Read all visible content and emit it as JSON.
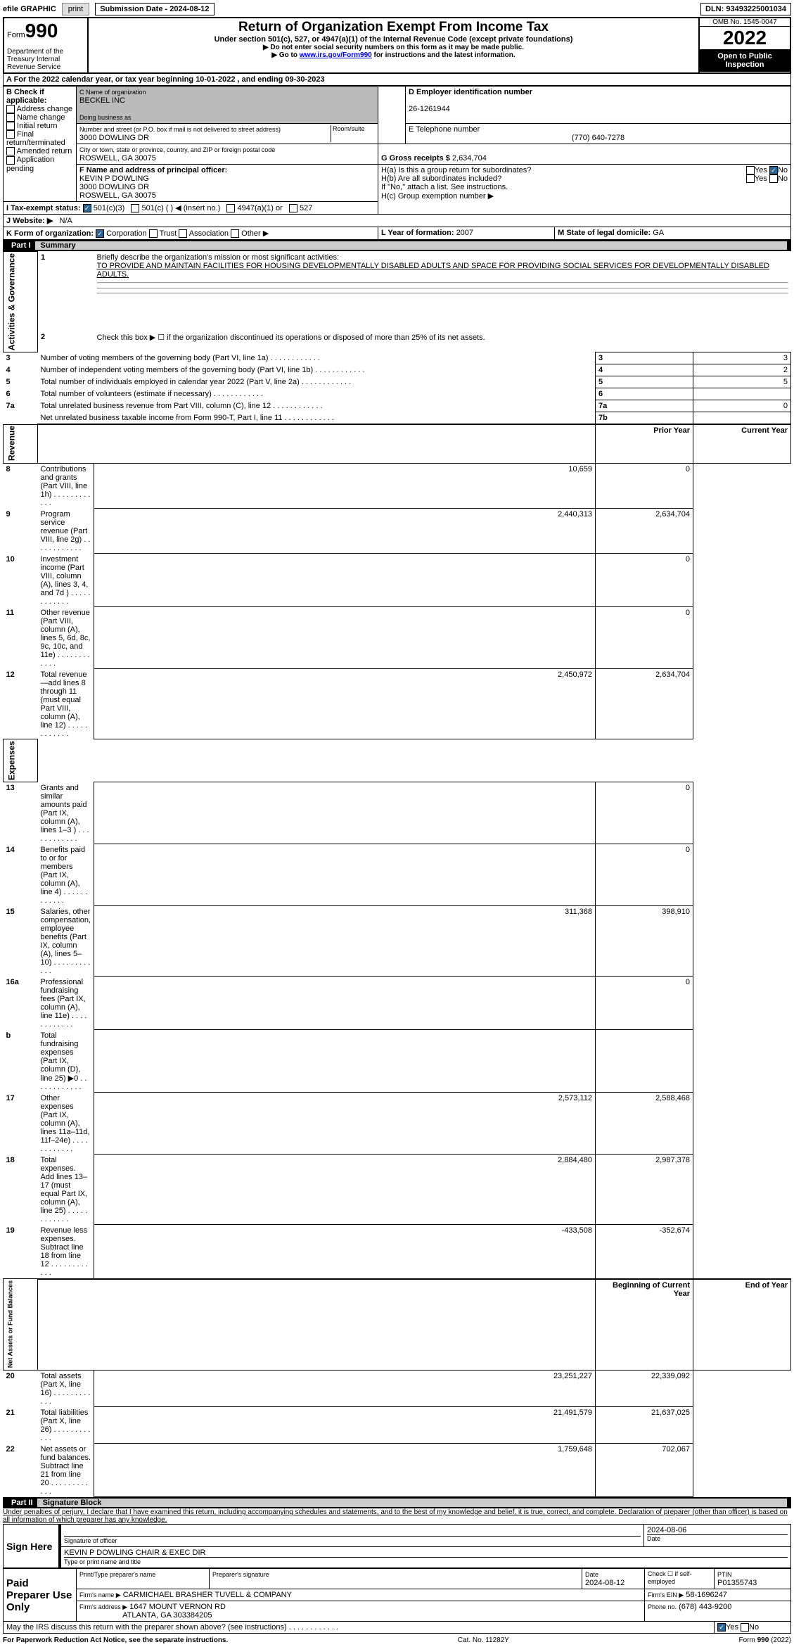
{
  "topbar": {
    "efile": "efile GRAPHIC",
    "print": "print",
    "subdate_label": "Submission Date - 2024-08-12",
    "dln": "DLN: 93493225001034"
  },
  "header": {
    "form_label": "Form",
    "form_no": "990",
    "title": "Return of Organization Exempt From Income Tax",
    "subtitle": "Under section 501(c), 527, or 4947(a)(1) of the Internal Revenue Code (except private foundations)",
    "note1": "▶ Do not enter social security numbers on this form as it may be made public.",
    "note2": "▶ Go to ",
    "note2_link": "www.irs.gov/Form990",
    "note2_end": " for instructions and the latest information.",
    "dept": "Department of the Treasury Internal Revenue Service",
    "omb": "OMB No. 1545-0047",
    "year": "2022",
    "inspect": "Open to Public Inspection"
  },
  "secA": {
    "line": "A For the 2022 calendar year, or tax year beginning 10-01-2022    , and ending 09-30-2023",
    "B_label": "B Check if applicable:",
    "B_opts": [
      "Address change",
      "Name change",
      "Initial return",
      "Final return/terminated",
      "Amended return",
      "Application pending"
    ],
    "C_label": "C Name of organization",
    "org": "BECKEL INC",
    "dba_label": "Doing business as",
    "street_label": "Number and street (or P.O. box if mail is not delivered to street address)",
    "room_label": "Room/suite",
    "street": "3000 DOWLING DR",
    "city_label": "City or town, state or province, country, and ZIP or foreign postal code",
    "city": "ROSWELL, GA  30075",
    "D_label": "D Employer identification number",
    "ein": "26-1261944",
    "E_label": "E Telephone number",
    "phone": "(770) 640-7278",
    "G_label": "G Gross receipts $",
    "gross": "2,634,704",
    "F_label": "F Name and address of principal officer:",
    "officer": "KEVIN P DOWLING",
    "officer_addr1": "3000 DOWLING DR",
    "officer_addr2": "ROSWELL, GA  30075",
    "Ha": "H(a)  Is this a group return for subordinates?",
    "Hb": "H(b)  Are all subordinates included?",
    "Hb_note": "If \"No,\" attach a list. See instructions.",
    "Hc": "H(c)  Group exemption number ▶",
    "yes": "Yes",
    "no": "No",
    "I_label": "I   Tax-exempt status:",
    "I_501c3": "501(c)(3)",
    "I_501c": "501(c) (  ) ◀ (insert no.)",
    "I_4947": "4947(a)(1) or",
    "I_527": "527",
    "J_label": "J   Website: ▶",
    "website": "N/A",
    "K_label": "K Form of organization:",
    "K_corp": "Corporation",
    "K_trust": "Trust",
    "K_assoc": "Association",
    "K_other": "Other ▶",
    "L_label": "L Year of formation: ",
    "L_val": "2007",
    "M_label": "M State of legal domicile: ",
    "M_val": "GA"
  },
  "part1": {
    "title": "Part I",
    "name": "Summary",
    "q1": "Briefly describe the organization's mission or most significant activities:",
    "mission": "TO PROVIDE AND MAINTAIN FACILITIES FOR HOUSING DEVELOPMENTALLY DISABLED ADULTS AND SPACE FOR PROVIDING SOCIAL SERVICES FOR DEVELOPMENTALLY DISABLED ADULTS.",
    "q2": "Check this box ▶ ☐ if the organization discontinued its operations or disposed of more than 25% of its net assets.",
    "rows_gov": [
      {
        "n": "3",
        "t": "Number of voting members of the governing body (Part VI, line 1a)",
        "box": "3",
        "v": "3"
      },
      {
        "n": "4",
        "t": "Number of independent voting members of the governing body (Part VI, line 1b)",
        "box": "4",
        "v": "2"
      },
      {
        "n": "5",
        "t": "Total number of individuals employed in calendar year 2022 (Part V, line 2a)",
        "box": "5",
        "v": "5"
      },
      {
        "n": "6",
        "t": "Total number of volunteers (estimate if necessary)",
        "box": "6",
        "v": ""
      },
      {
        "n": "7a",
        "t": "Total unrelated business revenue from Part VIII, column (C), line 12",
        "box": "7a",
        "v": "0"
      },
      {
        "n": "",
        "t": "Net unrelated business taxable income from Form 990-T, Part I, line 11",
        "box": "7b",
        "v": ""
      }
    ],
    "col_prior": "Prior Year",
    "col_current": "Current Year",
    "rows_rev": [
      {
        "n": "8",
        "t": "Contributions and grants (Part VIII, line 1h)",
        "p": "10,659",
        "c": "0"
      },
      {
        "n": "9",
        "t": "Program service revenue (Part VIII, line 2g)",
        "p": "2,440,313",
        "c": "2,634,704"
      },
      {
        "n": "10",
        "t": "Investment income (Part VIII, column (A), lines 3, 4, and 7d )",
        "p": "",
        "c": "0"
      },
      {
        "n": "11",
        "t": "Other revenue (Part VIII, column (A), lines 5, 6d, 8c, 9c, 10c, and 11e)",
        "p": "",
        "c": "0"
      },
      {
        "n": "12",
        "t": "Total revenue—add lines 8 through 11 (must equal Part VIII, column (A), line 12)",
        "p": "2,450,972",
        "c": "2,634,704"
      }
    ],
    "rows_exp": [
      {
        "n": "13",
        "t": "Grants and similar amounts paid (Part IX, column (A), lines 1–3 )",
        "p": "",
        "c": "0"
      },
      {
        "n": "14",
        "t": "Benefits paid to or for members (Part IX, column (A), line 4)",
        "p": "",
        "c": "0"
      },
      {
        "n": "15",
        "t": "Salaries, other compensation, employee benefits (Part IX, column (A), lines 5–10)",
        "p": "311,368",
        "c": "398,910"
      },
      {
        "n": "16a",
        "t": "Professional fundraising fees (Part IX, column (A), line 11e)",
        "p": "",
        "c": "0"
      },
      {
        "n": "b",
        "t": "Total fundraising expenses (Part IX, column (D), line 25) ▶0",
        "p": "GRAY",
        "c": "GRAY"
      },
      {
        "n": "17",
        "t": "Other expenses (Part IX, column (A), lines 11a–11d, 11f–24e)",
        "p": "2,573,112",
        "c": "2,588,468"
      },
      {
        "n": "18",
        "t": "Total expenses. Add lines 13–17 (must equal Part IX, column (A), line 25)",
        "p": "2,884,480",
        "c": "2,987,378"
      },
      {
        "n": "19",
        "t": "Revenue less expenses. Subtract line 18 from line 12",
        "p": "-433,508",
        "c": "-352,674"
      }
    ],
    "col_begin": "Beginning of Current Year",
    "col_end": "End of Year",
    "rows_net": [
      {
        "n": "20",
        "t": "Total assets (Part X, line 16)",
        "p": "23,251,227",
        "c": "22,339,092"
      },
      {
        "n": "21",
        "t": "Total liabilities (Part X, line 26)",
        "p": "21,491,579",
        "c": "21,637,025"
      },
      {
        "n": "22",
        "t": "Net assets or fund balances. Subtract line 21 from line 20",
        "p": "1,759,648",
        "c": "702,067"
      }
    ],
    "vlabels": {
      "gov": "Activities & Governance",
      "rev": "Revenue",
      "exp": "Expenses",
      "net": "Net Assets or Fund Balances"
    }
  },
  "part2": {
    "title": "Part II",
    "name": "Signature Block",
    "decl": "Under penalties of perjury, I declare that I have examined this return, including accompanying schedules and statements, and to the best of my knowledge and belief, it is true, correct, and complete. Declaration of preparer (other than officer) is based on all information of which preparer has any knowledge.",
    "sign_here": "Sign Here",
    "sig_officer": "Signature of officer",
    "sig_date": "2024-08-06",
    "sig_date_label": "Date",
    "name_title": "KEVIN P DOWLING  CHAIR & EXEC DIR",
    "name_title_label": "Type or print name and title",
    "paid": "Paid Preparer Use Only",
    "prep_name_label": "Print/Type preparer's name",
    "prep_sig_label": "Preparer's signature",
    "prep_date_label": "Date",
    "prep_date": "2024-08-12",
    "check_self": "Check ☐ if self-employed",
    "ptin_label": "PTIN",
    "ptin": "P01355743",
    "firm_name_label": "Firm's name    ▶",
    "firm_name": "CARMICHAEL BRASHER TUVELL & COMPANY",
    "firm_ein_label": "Firm's EIN ▶",
    "firm_ein": "58-1696247",
    "firm_addr_label": "Firm's address ▶",
    "firm_addr1": "1647 MOUNT VERNON RD",
    "firm_addr2": "ATLANTA, GA  303384205",
    "firm_phone_label": "Phone no.",
    "firm_phone": "(678) 443-9200",
    "discuss": "May the IRS discuss this return with the preparer shown above? (see instructions)"
  },
  "footer": {
    "left": "For Paperwork Reduction Act Notice, see the separate instructions.",
    "mid": "Cat. No. 11282Y",
    "right": "Form 990 (2022)"
  }
}
